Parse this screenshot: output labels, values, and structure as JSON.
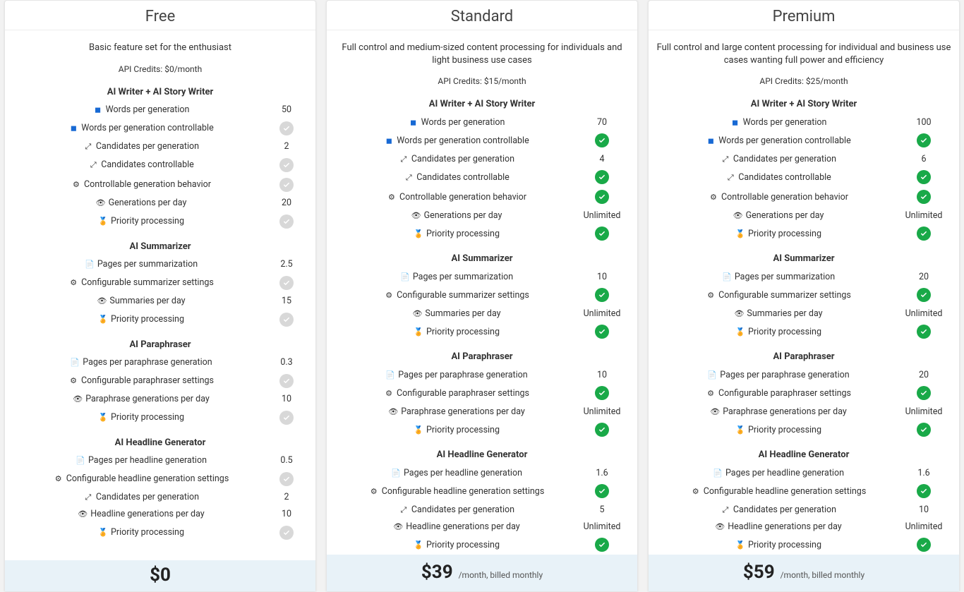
{
  "colors": {
    "background_page": "#f2f2f2",
    "card_bg": "#ffffff",
    "card_border": "#e5e5e5",
    "text": "#333333",
    "price_bar_bg": "#e8f2f8",
    "check_ok_bg": "#19a948",
    "check_gray_bg": "#d8d8d8",
    "icon_blue": "#1769d4"
  },
  "feature_icons": {
    "words": "◼",
    "words_ctrl": "◼",
    "candidates": "⤢",
    "candidates_ctrl": "⤢",
    "behavior": "⚙",
    "per_day": "👁",
    "priority": "🏅",
    "pages": "📄",
    "configurable": "⚙"
  },
  "sections": {
    "writer": "AI Writer + AI Story Writer",
    "summarizer": "AI Summarizer",
    "paraphraser": "AI Paraphraser",
    "headline": "AI Headline Generator"
  },
  "labels": {
    "words_per_gen": "Words per generation",
    "words_ctrl": "Words per generation controllable",
    "cand_per_gen": "Candidates per generation",
    "cand_ctrl": "Candidates controllable",
    "ctrl_behavior": "Controllable generation behavior",
    "gen_per_day": "Generations per day",
    "priority": "Priority processing",
    "pages_per_sum": "Pages per summarization",
    "conf_sum": "Configurable summarizer settings",
    "sum_per_day": "Summaries per day",
    "pages_per_para": "Pages per paraphrase generation",
    "conf_para": "Configurable paraphraser settings",
    "para_per_day": "Paraphrase generations per day",
    "pages_per_head": "Pages per headline generation",
    "conf_head": "Configurable headline generation settings",
    "head_cand": "Candidates per generation",
    "head_per_day": "Headline generations per day"
  },
  "plans": [
    {
      "key": "free",
      "title": "Free",
      "tagline": "Basic feature set for the enthusiast",
      "credits": "API Credits: $0/month",
      "price": "$0",
      "term": "",
      "writer": {
        "words_per_gen": "50",
        "words_ctrl": "gray",
        "cand_per_gen": "2",
        "cand_ctrl": "gray",
        "ctrl_behavior": "gray",
        "gen_per_day": "20",
        "priority": "gray"
      },
      "summarizer": {
        "pages_per_sum": "2.5",
        "conf_sum": "gray",
        "sum_per_day": "15",
        "priority": "gray"
      },
      "paraphraser": {
        "pages_per_para": "0.3",
        "conf_para": "gray",
        "para_per_day": "10",
        "priority": "gray"
      },
      "headline": {
        "pages_per_head": "0.5",
        "conf_head": "gray",
        "head_cand": "2",
        "head_per_day": "10",
        "priority": "gray"
      }
    },
    {
      "key": "standard",
      "title": "Standard",
      "tagline": "Full control and medium-sized content processing for individuals and light business use cases",
      "credits": "API Credits: $15/month",
      "price": "$39",
      "term": "/month, billed monthly",
      "writer": {
        "words_per_gen": "70",
        "words_ctrl": "ok",
        "cand_per_gen": "4",
        "cand_ctrl": "ok",
        "ctrl_behavior": "ok",
        "gen_per_day": "Unlimited",
        "priority": "ok"
      },
      "summarizer": {
        "pages_per_sum": "10",
        "conf_sum": "ok",
        "sum_per_day": "Unlimited",
        "priority": "ok"
      },
      "paraphraser": {
        "pages_per_para": "10",
        "conf_para": "ok",
        "para_per_day": "Unlimited",
        "priority": "ok"
      },
      "headline": {
        "pages_per_head": "1.6",
        "conf_head": "ok",
        "head_cand": "5",
        "head_per_day": "Unlimited",
        "priority": "ok"
      }
    },
    {
      "key": "premium",
      "title": "Premium",
      "tagline": "Full control and large content processing for individual and business use cases wanting full power and efficiency",
      "credits": "API Credits: $25/month",
      "price": "$59",
      "term": "/month, billed monthly",
      "writer": {
        "words_per_gen": "100",
        "words_ctrl": "ok",
        "cand_per_gen": "6",
        "cand_ctrl": "ok",
        "ctrl_behavior": "ok",
        "gen_per_day": "Unlimited",
        "priority": "ok"
      },
      "summarizer": {
        "pages_per_sum": "20",
        "conf_sum": "ok",
        "sum_per_day": "Unlimited",
        "priority": "ok"
      },
      "paraphraser": {
        "pages_per_para": "20",
        "conf_para": "ok",
        "para_per_day": "Unlimited",
        "priority": "ok"
      },
      "headline": {
        "pages_per_head": "1.6",
        "conf_head": "ok",
        "head_cand": "10",
        "head_per_day": "Unlimited",
        "priority": "ok"
      }
    }
  ]
}
